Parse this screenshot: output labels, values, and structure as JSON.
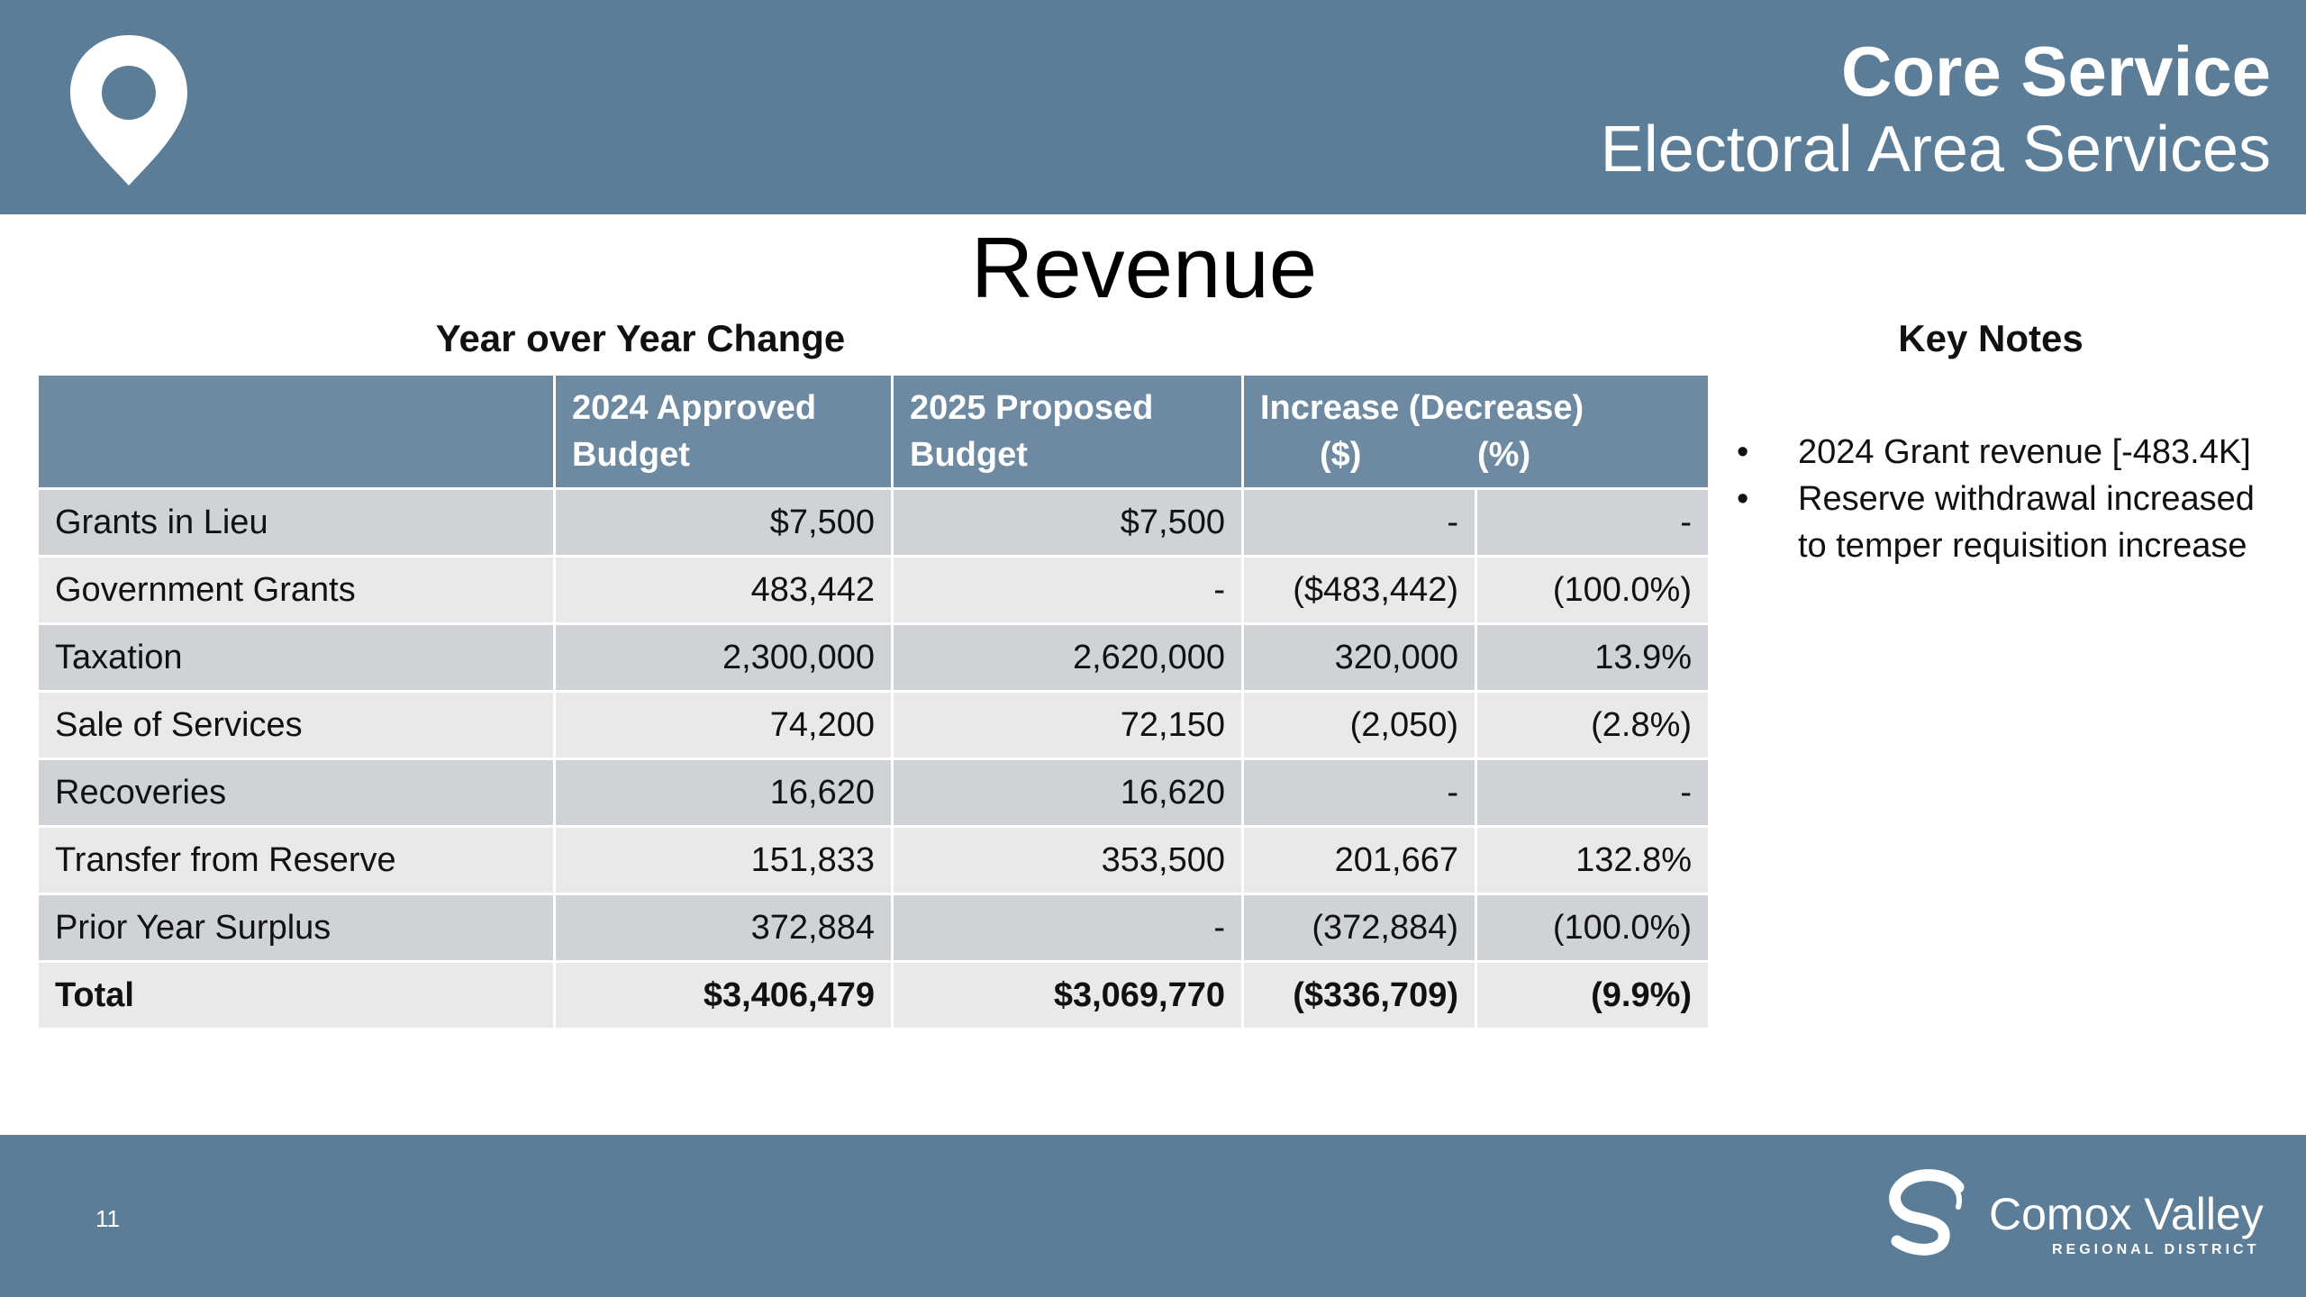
{
  "header": {
    "title": "Core Service",
    "subtitle": "Electoral Area Services",
    "icon": "location-pin-icon"
  },
  "slide": {
    "title": "Revenue"
  },
  "table": {
    "title": "Year over Year Change",
    "headers": {
      "item": "",
      "approved_2024": "2024 Approved Budget",
      "proposed_2025": "2025 Proposed Budget",
      "change": "Increase (Decrease)",
      "change_dollar": "($)",
      "change_percent": "(%)"
    },
    "rows": [
      {
        "label": "Grants in Lieu",
        "approved_2024": "$7,500",
        "proposed_2025": "$7,500",
        "change_dollar": "-",
        "change_percent": "-"
      },
      {
        "label": "Government Grants",
        "approved_2024": "483,442",
        "proposed_2025": "-",
        "change_dollar": "($483,442)",
        "change_percent": "(100.0%)"
      },
      {
        "label": "Taxation",
        "approved_2024": "2,300,000",
        "proposed_2025": "2,620,000",
        "change_dollar": "320,000",
        "change_percent": "13.9%"
      },
      {
        "label": "Sale of Services",
        "approved_2024": "74,200",
        "proposed_2025": "72,150",
        "change_dollar": "(2,050)",
        "change_percent": "(2.8%)"
      },
      {
        "label": "Recoveries",
        "approved_2024": "16,620",
        "proposed_2025": "16,620",
        "change_dollar": "-",
        "change_percent": "-"
      },
      {
        "label": "Transfer from Reserve",
        "approved_2024": "151,833",
        "proposed_2025": "353,500",
        "change_dollar": "201,667",
        "change_percent": "132.8%"
      },
      {
        "label": "Prior Year Surplus",
        "approved_2024": "372,884",
        "proposed_2025": "-",
        "change_dollar": "(372,884)",
        "change_percent": "(100.0%)"
      }
    ],
    "total": {
      "label": "Total",
      "approved_2024": "$3,406,479",
      "proposed_2025": "$3,069,770",
      "change_dollar": "($336,709)",
      "change_percent": "(9.9%)"
    }
  },
  "notes": {
    "title": "Key Notes",
    "bullet_glyph": "•",
    "items": [
      "2024 Grant revenue [-483.4K]",
      "Reserve withdrawal increased to temper requisition increase"
    ]
  },
  "footer": {
    "page_number": "11",
    "logo_name": "Comox Valley",
    "logo_subtitle": "REGIONAL DISTRICT"
  },
  "colors": {
    "header_bg": "#5b7d97",
    "table_header_bg": "#6e8aa2",
    "row_dark": "#cfd3d8",
    "row_light": "#e8e9eb"
  }
}
